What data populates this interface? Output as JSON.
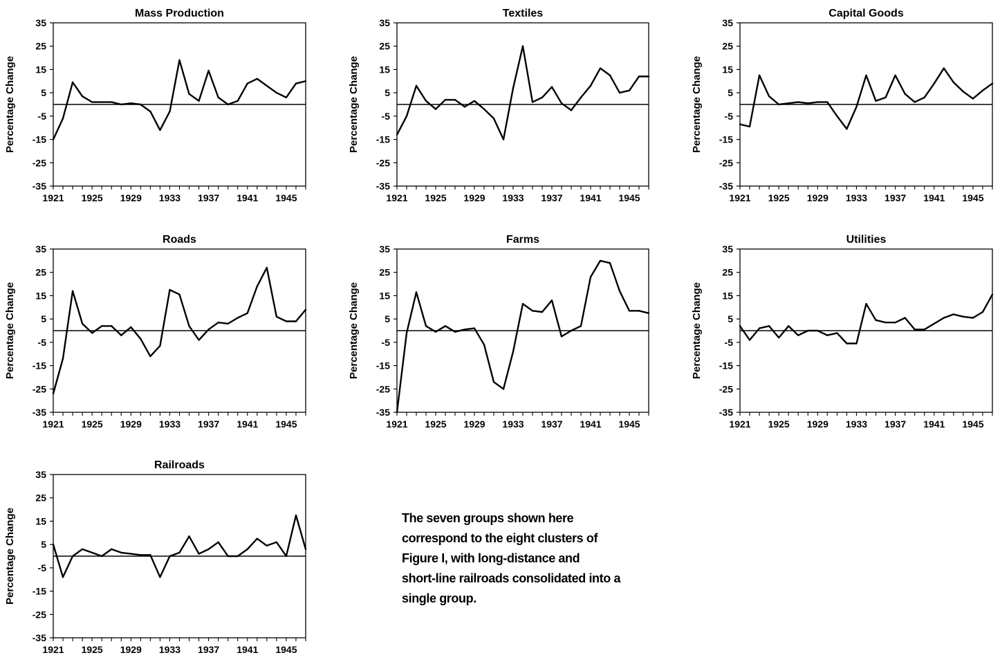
{
  "chart_data": [
    {
      "type": "line",
      "title": "Mass Production",
      "ylabel": "Percentage Change",
      "ylim": [
        -35,
        35
      ],
      "yticks": [
        35,
        25,
        15,
        5,
        -5,
        -15,
        -25,
        -35
      ],
      "xticks": [
        "1921",
        "1925",
        "1929",
        "1933",
        "1937",
        "1941",
        "1945"
      ],
      "x": [
        1921,
        1922,
        1923,
        1924,
        1925,
        1926,
        1927,
        1928,
        1929,
        1930,
        1931,
        1932,
        1933,
        1934,
        1935,
        1936,
        1937,
        1938,
        1939,
        1940,
        1941,
        1942,
        1943,
        1944,
        1945,
        1946,
        1947
      ],
      "y": [
        -15,
        -6,
        9.5,
        3.5,
        1,
        1,
        1,
        0,
        0.5,
        0,
        -3,
        -11,
        -3,
        19,
        4.5,
        1.5,
        14.5,
        3,
        0,
        1.5,
        9,
        11,
        8,
        5,
        3,
        9,
        10
      ]
    },
    {
      "type": "line",
      "title": "Textiles",
      "ylabel": "Percentage Change",
      "ylim": [
        -35,
        35
      ],
      "yticks": [
        35,
        25,
        15,
        5,
        -5,
        -15,
        -25,
        -35
      ],
      "xticks": [
        "1921",
        "1925",
        "1929",
        "1933",
        "1937",
        "1941",
        "1945"
      ],
      "x": [
        1921,
        1922,
        1923,
        1924,
        1925,
        1926,
        1927,
        1928,
        1929,
        1930,
        1931,
        1932,
        1933,
        1934,
        1935,
        1936,
        1937,
        1938,
        1939,
        1940,
        1941,
        1942,
        1943,
        1944,
        1945,
        1946,
        1947
      ],
      "y": [
        -13,
        -5,
        8,
        1.5,
        -2,
        2,
        2,
        -1,
        1.5,
        -2,
        -6,
        -15,
        7,
        25,
        1,
        3,
        7.5,
        0.5,
        -2.5,
        3,
        8,
        15.5,
        12.5,
        5,
        6,
        12,
        12
      ]
    },
    {
      "type": "line",
      "title": "Capital Goods",
      "ylabel": "Percentage Change",
      "ylim": [
        -35,
        35
      ],
      "yticks": [
        35,
        25,
        15,
        5,
        -5,
        -15,
        -25,
        -35
      ],
      "xticks": [
        "1921",
        "1925",
        "1929",
        "1933",
        "1937",
        "1941",
        "1945"
      ],
      "x": [
        1921,
        1922,
        1923,
        1924,
        1925,
        1926,
        1927,
        1928,
        1929,
        1930,
        1931,
        1932,
        1933,
        1934,
        1935,
        1936,
        1937,
        1938,
        1939,
        1940,
        1941,
        1942,
        1943,
        1944,
        1945,
        1946,
        1947
      ],
      "y": [
        -8.5,
        -9.5,
        12.5,
        3.5,
        0,
        0.5,
        1,
        0.5,
        1,
        1,
        -5,
        -10.5,
        -1,
        12.5,
        1.5,
        3,
        12.5,
        4.5,
        1,
        3,
        9,
        15.5,
        9.5,
        5.5,
        2.5,
        6,
        9
      ]
    },
    {
      "type": "line",
      "title": "Roads",
      "ylabel": "Percentage Change",
      "ylim": [
        -35,
        35
      ],
      "yticks": [
        35,
        25,
        15,
        5,
        -5,
        -15,
        -25,
        -35
      ],
      "xticks": [
        "1921",
        "1925",
        "1929",
        "1933",
        "1937",
        "1941",
        "1945"
      ],
      "x": [
        1921,
        1922,
        1923,
        1924,
        1925,
        1926,
        1927,
        1928,
        1929,
        1930,
        1931,
        1932,
        1933,
        1934,
        1935,
        1936,
        1937,
        1938,
        1939,
        1940,
        1941,
        1942,
        1943,
        1944,
        1945,
        1946,
        1947
      ],
      "y": [
        -27,
        -12,
        17,
        3,
        -1,
        2,
        2,
        -2,
        1.5,
        -3.5,
        -11,
        -6.5,
        17.5,
        15.5,
        2,
        -4,
        0.5,
        3.5,
        3,
        5.5,
        7.5,
        19,
        27,
        6,
        4,
        4,
        9
      ]
    },
    {
      "type": "line",
      "title": "Farms",
      "ylabel": "Percentage Change",
      "ylim": [
        -35,
        35
      ],
      "yticks": [
        35,
        25,
        15,
        5,
        -5,
        -15,
        -25,
        -35
      ],
      "xticks": [
        "1921",
        "1925",
        "1929",
        "1933",
        "1937",
        "1941",
        "1945"
      ],
      "x": [
        1921,
        1922,
        1923,
        1924,
        1925,
        1926,
        1927,
        1928,
        1929,
        1930,
        1931,
        1932,
        1933,
        1934,
        1935,
        1936,
        1937,
        1938,
        1939,
        1940,
        1941,
        1942,
        1943,
        1944,
        1945,
        1946,
        1947
      ],
      "y": [
        -35,
        -1,
        16.5,
        2,
        -0.5,
        2,
        -0.5,
        0.5,
        1,
        -6,
        -22,
        -25,
        -9,
        11.5,
        8.5,
        8,
        13,
        -2.5,
        0,
        2,
        23,
        30,
        29,
        17,
        8.5,
        8.5,
        7.5
      ]
    },
    {
      "type": "line",
      "title": "Utilities",
      "ylabel": "Percentage Change",
      "ylim": [
        -35,
        35
      ],
      "yticks": [
        35,
        25,
        15,
        5,
        -5,
        -15,
        -25,
        -35
      ],
      "xticks": [
        "1921",
        "1925",
        "1929",
        "1933",
        "1937",
        "1941",
        "1945"
      ],
      "x": [
        1921,
        1922,
        1923,
        1924,
        1925,
        1926,
        1927,
        1928,
        1929,
        1930,
        1931,
        1932,
        1933,
        1934,
        1935,
        1936,
        1937,
        1938,
        1939,
        1940,
        1941,
        1942,
        1943,
        1944,
        1945,
        1946,
        1947
      ],
      "y": [
        2,
        -4,
        1,
        2,
        -3,
        2,
        -2,
        0,
        0,
        -2,
        -1,
        -5.5,
        -5.5,
        11.5,
        4.5,
        3.5,
        3.5,
        5.5,
        0.5,
        0.5,
        3,
        5.5,
        7,
        6,
        5.5,
        8,
        15.5
      ]
    },
    {
      "type": "line",
      "title": "Railroads",
      "ylabel": "Percentage Change",
      "ylim": [
        -35,
        35
      ],
      "yticks": [
        35,
        25,
        15,
        5,
        -5,
        -15,
        -25,
        -35
      ],
      "xticks": [
        "1921",
        "1925",
        "1929",
        "1933",
        "1937",
        "1941",
        "1945"
      ],
      "x": [
        1921,
        1922,
        1923,
        1924,
        1925,
        1926,
        1927,
        1928,
        1929,
        1930,
        1931,
        1932,
        1933,
        1934,
        1935,
        1936,
        1937,
        1938,
        1939,
        1940,
        1941,
        1942,
        1943,
        1944,
        1945,
        1946,
        1947
      ],
      "y": [
        5,
        -9,
        0,
        3,
        1.5,
        0,
        3,
        1.5,
        1,
        0.5,
        0.5,
        -9,
        0,
        1.5,
        8.5,
        1,
        3,
        6,
        0,
        0,
        3,
        7.5,
        4.5,
        6,
        0,
        17.5,
        3
      ]
    }
  ],
  "note": {
    "lines": [
      "The seven groups shown here",
      "correspond to the eight clusters of",
      "Figure I,  with long-distance and",
      "short-line railroads consolidated into a",
      "single group."
    ]
  }
}
